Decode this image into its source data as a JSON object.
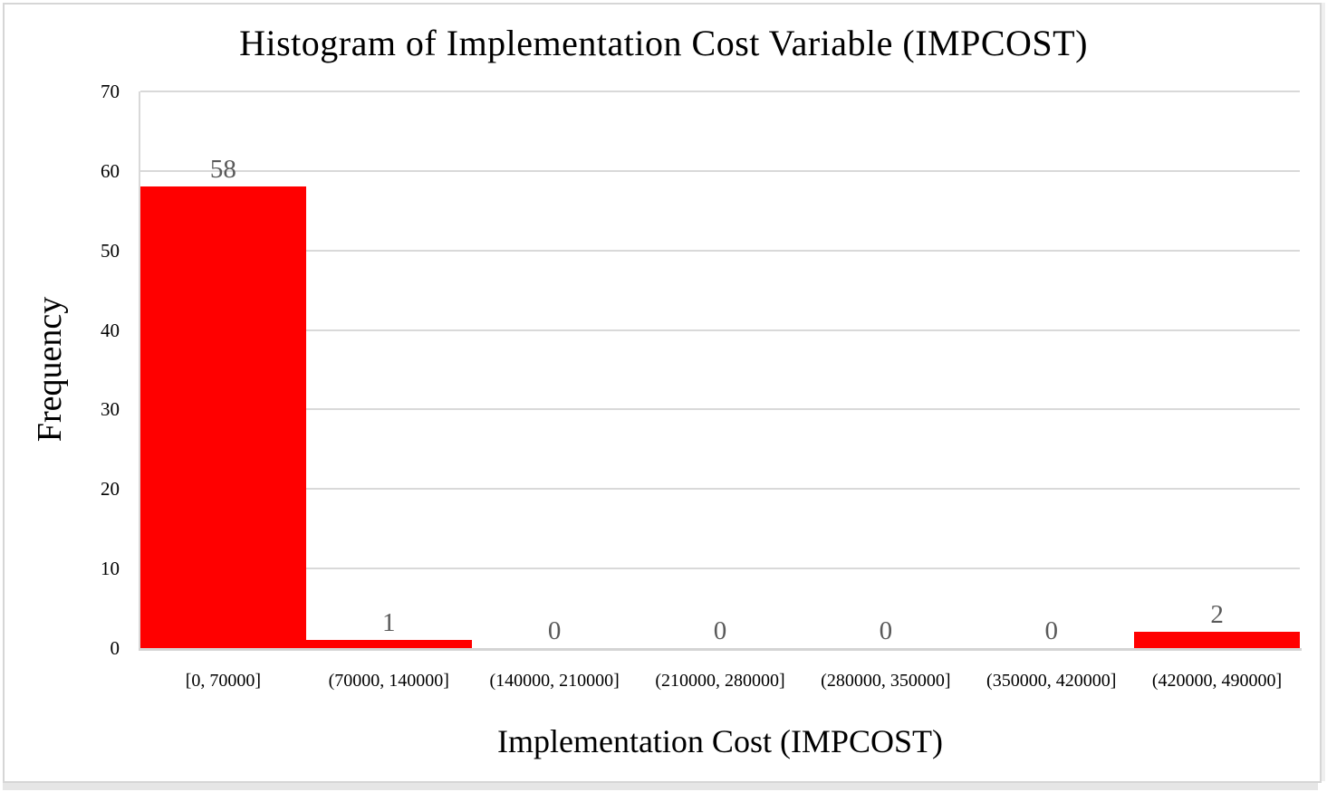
{
  "chart_data": {
    "type": "bar",
    "title": "Histogram of Implementation Cost Variable (IMPCOST)",
    "xlabel": "Implementation Cost (IMPCOST)",
    "ylabel": "Frequency",
    "categories": [
      "[0, 70000]",
      "(70000, 140000]",
      "(140000, 210000]",
      "(210000, 280000]",
      "(280000, 350000]",
      "(350000, 420000]",
      "(420000, 490000]"
    ],
    "values": [
      58,
      1,
      0,
      0,
      0,
      0,
      2
    ],
    "data_labels": [
      58,
      1,
      0,
      0,
      0,
      0,
      2
    ],
    "ylim": [
      0,
      70
    ],
    "ytick_interval": 10,
    "ytick_labels": [
      "0",
      "10",
      "20",
      "30",
      "40",
      "50",
      "60",
      "70"
    ],
    "grid": true,
    "legend": "none",
    "bar_gap": 0,
    "colors": {
      "bar_fill": "#ff0000",
      "data_label": "#595959",
      "gridline": "#d9d9d9",
      "axis_line": "#d4d4d4",
      "text": "#000000"
    }
  }
}
